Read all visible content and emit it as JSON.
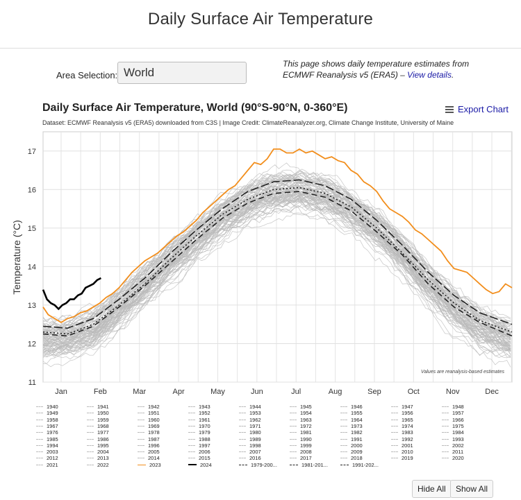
{
  "page": {
    "title": "Daily Surface Air Temperature",
    "area_label": "Area Selection:",
    "area_value": "World",
    "info_text": "This page shows daily temperature estimates from ECMWF Reanalysis v5 (ERA5) – ",
    "info_link": "View details",
    "info_end": ".",
    "export_label": "Export Chart",
    "hide_all": "Hide All",
    "show_all": "Show All"
  },
  "chart_data": {
    "type": "line",
    "title": "Daily Surface Air Temperature, World (90°S-90°N, 0-360°E)",
    "subtitle": "Dataset: ECMWF Reanalysis v5 (ERA5) downloaded from C3S | Image Credit: ClimateReanalyzer.org, Climate Change Institute, University of Maine",
    "ylabel": "Temperature (°C)",
    "ylim": [
      11,
      17.5
    ],
    "yticks": [
      11,
      12,
      13,
      14,
      15,
      16,
      17
    ],
    "x_range": [
      1,
      365
    ],
    "month_labels": [
      "Jan",
      "Feb",
      "Mar",
      "Apr",
      "May",
      "Jun",
      "Jul",
      "Aug",
      "Sep",
      "Oct",
      "Nov",
      "Dec"
    ],
    "note": "Values are reanalysis-based estimates",
    "grid": true,
    "background_years": {
      "count": 84,
      "color": "#bbbbbb",
      "mean_curve": {
        "x": [
          1,
          20,
          40,
          60,
          80,
          100,
          120,
          140,
          160,
          180,
          200,
          220,
          240,
          260,
          280,
          300,
          320,
          340,
          365
        ],
        "y": [
          12.1,
          12.1,
          12.35,
          12.9,
          13.5,
          14.1,
          14.7,
          15.25,
          15.65,
          15.9,
          15.95,
          15.8,
          15.45,
          14.95,
          14.3,
          13.55,
          12.9,
          12.4,
          12.05
        ]
      },
      "spread": 0.45
    },
    "series": [
      {
        "name": "2023",
        "color": "#f28e1c",
        "x": [
          1,
          5,
          10,
          15,
          20,
          25,
          30,
          35,
          40,
          45,
          50,
          55,
          60,
          65,
          70,
          75,
          80,
          85,
          90,
          95,
          100,
          105,
          110,
          115,
          120,
          125,
          130,
          135,
          140,
          145,
          150,
          155,
          160,
          165,
          170,
          175,
          180,
          185,
          190,
          195,
          200,
          205,
          210,
          215,
          220,
          225,
          230,
          235,
          240,
          245,
          250,
          255,
          260,
          265,
          270,
          275,
          280,
          285,
          290,
          295,
          300,
          305,
          310,
          315,
          320,
          325,
          330,
          335,
          340,
          345,
          350,
          355,
          360,
          365
        ],
        "y": [
          12.95,
          12.75,
          12.65,
          12.55,
          12.65,
          12.7,
          12.8,
          12.85,
          12.95,
          13.05,
          13.2,
          13.3,
          13.45,
          13.65,
          13.85,
          14.0,
          14.15,
          14.25,
          14.35,
          14.5,
          14.65,
          14.8,
          14.9,
          15.05,
          15.2,
          15.4,
          15.55,
          15.7,
          15.85,
          16.0,
          16.1,
          16.3,
          16.5,
          16.7,
          16.65,
          16.8,
          17.05,
          17.05,
          16.95,
          16.95,
          17.05,
          16.95,
          17.0,
          16.9,
          16.8,
          16.85,
          16.75,
          16.7,
          16.5,
          16.4,
          16.2,
          16.1,
          15.95,
          15.7,
          15.5,
          15.4,
          15.3,
          15.15,
          14.95,
          14.85,
          14.7,
          14.55,
          14.4,
          14.15,
          13.95,
          13.9,
          13.85,
          13.7,
          13.55,
          13.4,
          13.3,
          13.35,
          13.55,
          13.45
        ]
      },
      {
        "name": "2024",
        "color": "#000000",
        "x": [
          1,
          4,
          7,
          10,
          13,
          16,
          19,
          22,
          25,
          28,
          31,
          34,
          37,
          40,
          43,
          46
        ],
        "y": [
          13.4,
          13.15,
          13.05,
          13.0,
          12.9,
          13.0,
          13.05,
          13.15,
          13.15,
          13.25,
          13.3,
          13.45,
          13.5,
          13.55,
          13.65,
          13.7
        ]
      },
      {
        "name": "1979-200...",
        "color": "#222222",
        "dash": "8,5",
        "x": [
          1,
          20,
          40,
          60,
          80,
          100,
          120,
          140,
          160,
          180,
          200,
          220,
          240,
          260,
          280,
          300,
          320,
          340,
          365
        ],
        "y": [
          12.25,
          12.2,
          12.45,
          12.95,
          13.5,
          14.1,
          14.7,
          15.25,
          15.65,
          15.9,
          15.95,
          15.8,
          15.45,
          14.9,
          14.3,
          13.55,
          12.95,
          12.55,
          12.2
        ]
      },
      {
        "name": "1981-201...",
        "color": "#222222",
        "dash": "2,3",
        "x": [
          1,
          20,
          40,
          60,
          80,
          100,
          120,
          140,
          160,
          180,
          200,
          220,
          240,
          260,
          280,
          300,
          320,
          340,
          365
        ],
        "y": [
          12.3,
          12.25,
          12.5,
          13.0,
          13.55,
          14.2,
          14.8,
          15.35,
          15.75,
          16.0,
          16.05,
          15.9,
          15.55,
          15.0,
          14.35,
          13.65,
          13.05,
          12.6,
          12.3
        ]
      },
      {
        "name": "1991-202...",
        "color": "#222222",
        "dash": "12,4",
        "x": [
          1,
          20,
          40,
          60,
          80,
          100,
          120,
          140,
          160,
          180,
          200,
          220,
          240,
          260,
          280,
          300,
          320,
          340,
          365
        ],
        "y": [
          12.45,
          12.4,
          12.65,
          13.15,
          13.7,
          14.35,
          14.95,
          15.5,
          15.95,
          16.2,
          16.25,
          16.1,
          15.75,
          15.2,
          14.55,
          13.85,
          13.25,
          12.8,
          12.5
        ]
      }
    ],
    "legend": {
      "placement": "bottom",
      "columns": [
        [
          "1940",
          "1949",
          "1958",
          "1967",
          "1976",
          "1985",
          "1994",
          "2003",
          "2012",
          "2021"
        ],
        [
          "1941",
          "1950",
          "1959",
          "1968",
          "1977",
          "1986",
          "1995",
          "2004",
          "2013",
          "2022"
        ],
        [
          "1942",
          "1951",
          "1960",
          "1969",
          "1978",
          "1987",
          "1996",
          "2005",
          "2014",
          "2023"
        ],
        [
          "1943",
          "1952",
          "1961",
          "1970",
          "1979",
          "1988",
          "1997",
          "2006",
          "2015",
          "2024"
        ],
        [
          "1944",
          "1953",
          "1962",
          "1971",
          "1980",
          "1989",
          "1998",
          "2007",
          "2016",
          "1979-200..."
        ],
        [
          "1945",
          "1954",
          "1963",
          "1972",
          "1981",
          "1990",
          "1999",
          "2008",
          "2017",
          "1981-201..."
        ],
        [
          "1946",
          "1955",
          "1964",
          "1973",
          "1982",
          "1991",
          "2000",
          "2009",
          "2018",
          "1991-202..."
        ],
        [
          "1947",
          "1956",
          "1965",
          "1974",
          "1983",
          "1992",
          "2001",
          "2010",
          "2019"
        ],
        [
          "1948",
          "1957",
          "1966",
          "1975",
          "1984",
          "1993",
          "2002",
          "2011",
          "2020"
        ]
      ]
    }
  }
}
